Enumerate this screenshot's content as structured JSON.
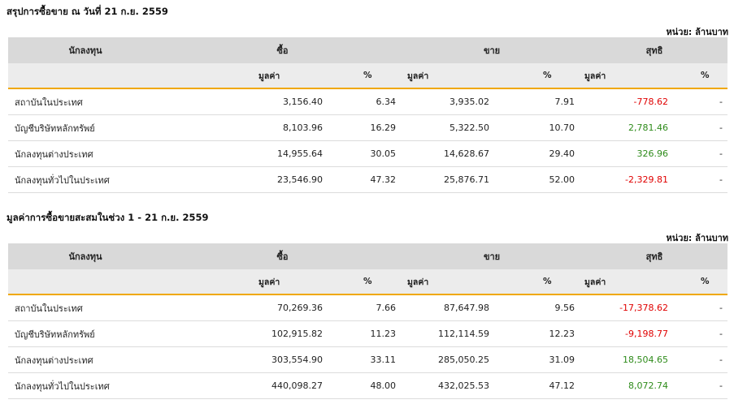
{
  "section1": {
    "title": "สรุปการซื้อขาย ณ วันที่ 21 ก.ย. 2559",
    "unit": "หน่วย: ล้านบาท",
    "header": {
      "investor": "นักลงทุน",
      "buy": "ซื้อ",
      "sell": "ขาย",
      "net": "สุทธิ",
      "value": "มูลค่า",
      "pct": "%"
    },
    "rows": [
      {
        "name": "สถาบันในประเทศ",
        "buy_value": "3,156.40",
        "buy_pct": "6.34",
        "sell_value": "3,935.02",
        "sell_pct": "7.91",
        "net_value": "-778.62",
        "net_pct": "-"
      },
      {
        "name": "บัญชีบริษัทหลักทรัพย์",
        "buy_value": "8,103.96",
        "buy_pct": "16.29",
        "sell_value": "5,322.50",
        "sell_pct": "10.70",
        "net_value": "2,781.46",
        "net_pct": "-"
      },
      {
        "name": "นักลงทุนต่างประเทศ",
        "buy_value": "14,955.64",
        "buy_pct": "30.05",
        "sell_value": "14,628.67",
        "sell_pct": "29.40",
        "net_value": "326.96",
        "net_pct": "-"
      },
      {
        "name": "นักลงทุนทั่วไปในประเทศ",
        "buy_value": "23,546.90",
        "buy_pct": "47.32",
        "sell_value": "25,876.71",
        "sell_pct": "52.00",
        "net_value": "-2,329.81",
        "net_pct": "-"
      }
    ]
  },
  "section2": {
    "title": "มูลค่าการซื้อขายสะสมในช่วง 1 - 21 ก.ย. 2559",
    "unit": "หน่วย: ล้านบาท",
    "header": {
      "investor": "นักลงทุน",
      "buy": "ซื้อ",
      "sell": "ขาย",
      "net": "สุทธิ",
      "value": "มูลค่า",
      "pct": "%"
    },
    "rows": [
      {
        "name": "สถาบันในประเทศ",
        "buy_value": "70,269.36",
        "buy_pct": "7.66",
        "sell_value": "87,647.98",
        "sell_pct": "9.56",
        "net_value": "-17,378.62",
        "net_pct": "-"
      },
      {
        "name": "บัญชีบริษัทหลักทรัพย์",
        "buy_value": "102,915.82",
        "buy_pct": "11.23",
        "sell_value": "112,114.59",
        "sell_pct": "12.23",
        "net_value": "-9,198.77",
        "net_pct": "-"
      },
      {
        "name": "นักลงทุนต่างประเทศ",
        "buy_value": "303,554.90",
        "buy_pct": "33.11",
        "sell_value": "285,050.25",
        "sell_pct": "31.09",
        "net_value": "18,504.65",
        "net_pct": "-"
      },
      {
        "name": "นักลงทุนทั่วไปในประเทศ",
        "buy_value": "440,098.27",
        "buy_pct": "48.00",
        "sell_value": "432,025.53",
        "sell_pct": "47.12",
        "net_value": "8,072.74",
        "net_pct": "-"
      }
    ]
  },
  "colors": {
    "negative": "#e00000",
    "positive": "#2e8b1a",
    "header_bg": "#d9d9d9",
    "subheader_bg": "#ececec",
    "accent_underline": "#f0a800"
  }
}
